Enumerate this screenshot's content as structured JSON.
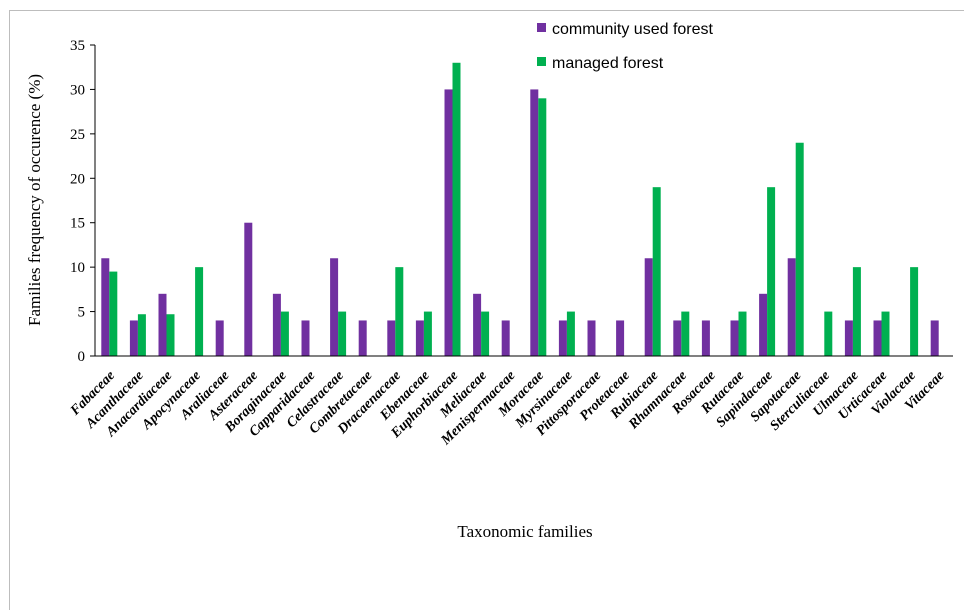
{
  "chart_data": {
    "type": "bar",
    "title": "",
    "xlabel": "Taxonomic families",
    "ylabel": "Families frequency of occurence (%)",
    "ylim": [
      0,
      35
    ],
    "yticks": [
      0,
      5,
      10,
      15,
      20,
      25,
      30,
      35
    ],
    "grid": false,
    "legend_position": "top",
    "categories": [
      "Fabaceae",
      "Acanthaceae",
      "Anacardiaceae",
      "Apocynaceae",
      "Araliaceae",
      "Asteraceae",
      "Boraginaceae",
      "Capparidaceae",
      "Celastraceae",
      "Combretaceae",
      "Dracaenaceae",
      "Ebenaceae",
      "Euphorbiaceae",
      "Meliaceae",
      "Menispermaceae",
      "Moraceae",
      "Myrsinaceae",
      "Pittosporaceae",
      "Proteaceae",
      "Rubiaceae",
      "Rhamnaceae",
      "Rosaceae",
      "Rutaceae",
      "Sapindaceae",
      "Sapotaceae",
      "Sterculiaceae",
      "Ulmaceae",
      "Urticaceae",
      "Violaceae",
      "Vitaceae"
    ],
    "series": [
      {
        "name": "community used forest",
        "color": "#7030A0",
        "values": [
          11,
          4,
          7,
          0,
          4,
          15,
          7,
          4,
          11,
          4,
          4,
          4,
          30,
          7,
          4,
          30,
          4,
          4,
          4,
          11,
          4,
          4,
          4,
          7,
          11,
          0,
          4,
          4,
          0,
          4
        ]
      },
      {
        "name": "managed forest",
        "color": "#00B050",
        "values": [
          9.5,
          4.7,
          4.7,
          10,
          0,
          0,
          5,
          0,
          5,
          0,
          10,
          5,
          33,
          5,
          0,
          29,
          5,
          0,
          0,
          19,
          5,
          0,
          5,
          19,
          24,
          5,
          10,
          5,
          10,
          0
        ]
      }
    ]
  }
}
